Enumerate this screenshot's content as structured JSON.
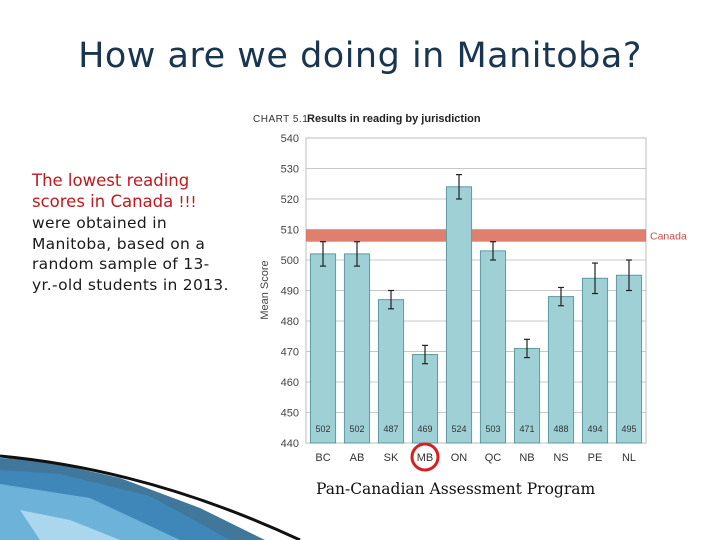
{
  "slide": {
    "title": "How are we doing in Manitoba?",
    "highlight": "The lowest reading scores in Canada",
    "highlight_suffix": "!!!",
    "body": "were obtained in Manitoba, based on a random sample of 13-yr.-old students in 2013.",
    "source": "Pan-Canadian Assessment Program"
  },
  "chart_data": {
    "type": "bar",
    "chart_label": "Chart 5.1",
    "title": "Results in reading by jurisdiction",
    "ylabel": "Mean Score",
    "xlabel": "",
    "ylim": [
      440,
      540
    ],
    "yticks": [
      440,
      450,
      460,
      470,
      480,
      490,
      500,
      510,
      520,
      530,
      540
    ],
    "categories": [
      "BC",
      "AB",
      "SK",
      "MB",
      "ON",
      "QC",
      "NB",
      "NS",
      "PE",
      "NL"
    ],
    "values": [
      502,
      502,
      487,
      469,
      524,
      503,
      471,
      488,
      494,
      495
    ],
    "error_low": [
      498,
      498,
      484,
      466,
      520,
      500,
      468,
      485,
      489,
      490
    ],
    "error_high": [
      506,
      506,
      490,
      472,
      528,
      506,
      474,
      491,
      499,
      500
    ],
    "data_labels": [
      "502",
      "502",
      "487",
      "469",
      "524",
      "503",
      "471",
      "488",
      "494",
      "495"
    ],
    "reference_band": {
      "label": "Canada",
      "low": 506,
      "high": 510
    },
    "highlighted_category": "MB",
    "grid": true,
    "colors": {
      "bar": "#9fd0d6",
      "bar_stroke": "#5c9aa1",
      "band": "#d96a55",
      "highlight_ring": "#d62020"
    }
  }
}
